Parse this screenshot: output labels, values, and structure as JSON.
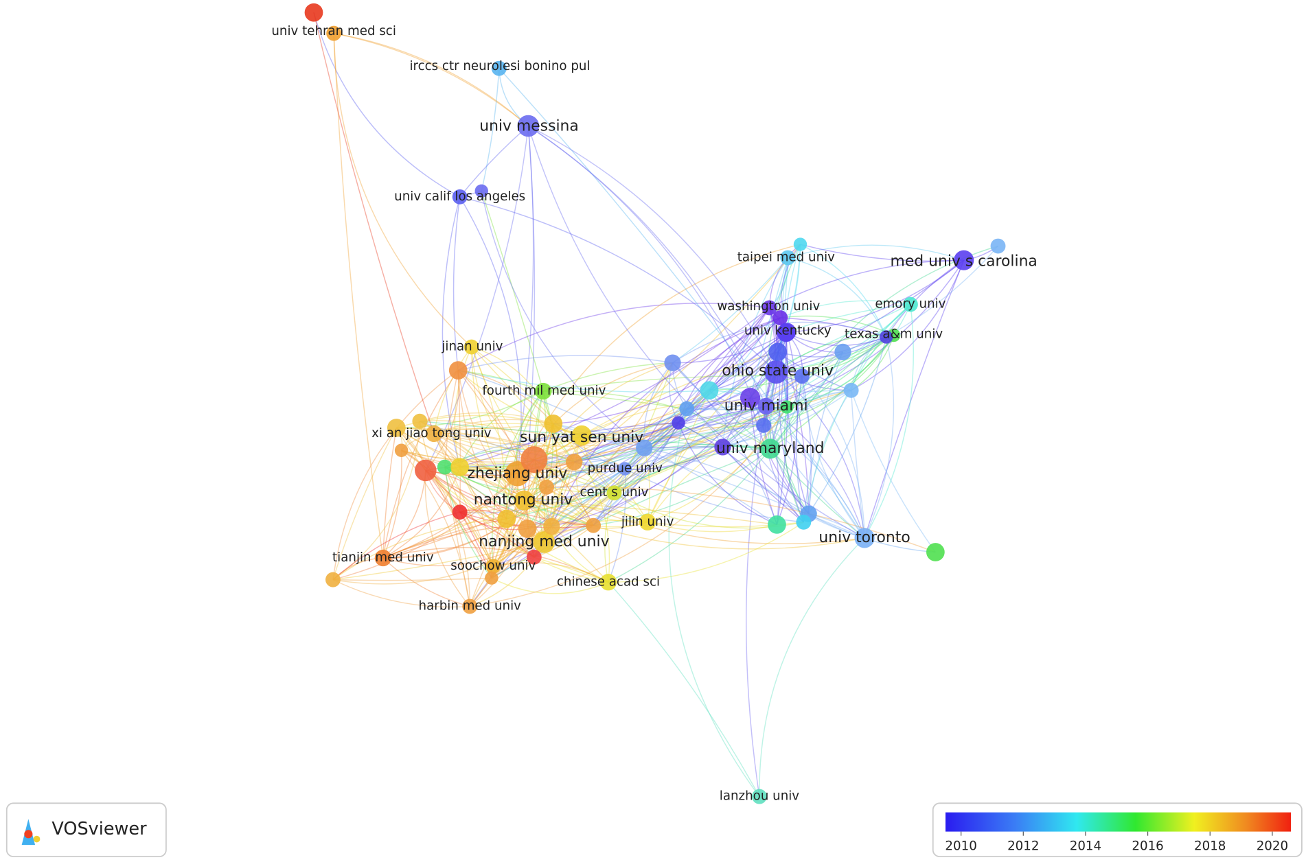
{
  "brand": "VOSviewer",
  "nodes": [
    {
      "label": "univ tehran med sci",
      "color": "#f0a030"
    },
    {
      "label": "irccs ctr neurolesi bonino pul",
      "color": "#58b4f0"
    },
    {
      "label": "univ messina",
      "color": "#6a6cf0"
    },
    {
      "label": "univ calif los angeles",
      "color": "#5a5ef0"
    },
    {
      "label": "taipei med univ",
      "color": "#5cc8f0"
    },
    {
      "label": "med univ s carolina",
      "color": "#5b3ff0"
    },
    {
      "label": "washington univ",
      "color": "#6a38e8"
    },
    {
      "label": "emory univ",
      "color": "#4de8d0"
    },
    {
      "label": "univ kentucky",
      "color": "#5040f0"
    },
    {
      "label": "texas a&m univ",
      "color": "#50e050"
    },
    {
      "label": "ohio state univ",
      "color": "#5a50f0"
    },
    {
      "label": "jinan univ",
      "color": "#f0d030"
    },
    {
      "label": "fourth mil med univ",
      "color": "#7de03b"
    },
    {
      "label": "univ miami",
      "color": "#6a60f0"
    },
    {
      "label": "sun yat sen univ",
      "color": "#f0d030"
    },
    {
      "label": "xi an jiao tong univ",
      "color": "#f0b040"
    },
    {
      "label": "univ maryland",
      "color": "#40d890"
    },
    {
      "label": "zhejiang univ",
      "color": "#f0a030"
    },
    {
      "label": "purdue univ",
      "color": "#7090f0"
    },
    {
      "label": "nantong univ",
      "color": "#f0c030"
    },
    {
      "label": "cent s univ",
      "color": "#d0e030"
    },
    {
      "label": "jilin univ",
      "color": "#f0d830"
    },
    {
      "label": "univ toronto",
      "color": "#7ab0f5"
    },
    {
      "label": "nanjing med univ",
      "color": "#f0c830"
    },
    {
      "label": "tianjin med univ",
      "color": "#f08030"
    },
    {
      "label": "soochow univ",
      "color": "#f0b030"
    },
    {
      "label": "chinese acad sci",
      "color": "#e8e030"
    },
    {
      "label": "harbin med univ",
      "color": "#f0a040"
    },
    {
      "label": "lanzhou univ",
      "color": "#60e0c0"
    }
  ],
  "color_scale": {
    "range": [
      2009.5,
      2020.6
    ],
    "ticks": [
      2010,
      2012,
      2014,
      2016,
      2018,
      2020
    ]
  }
}
